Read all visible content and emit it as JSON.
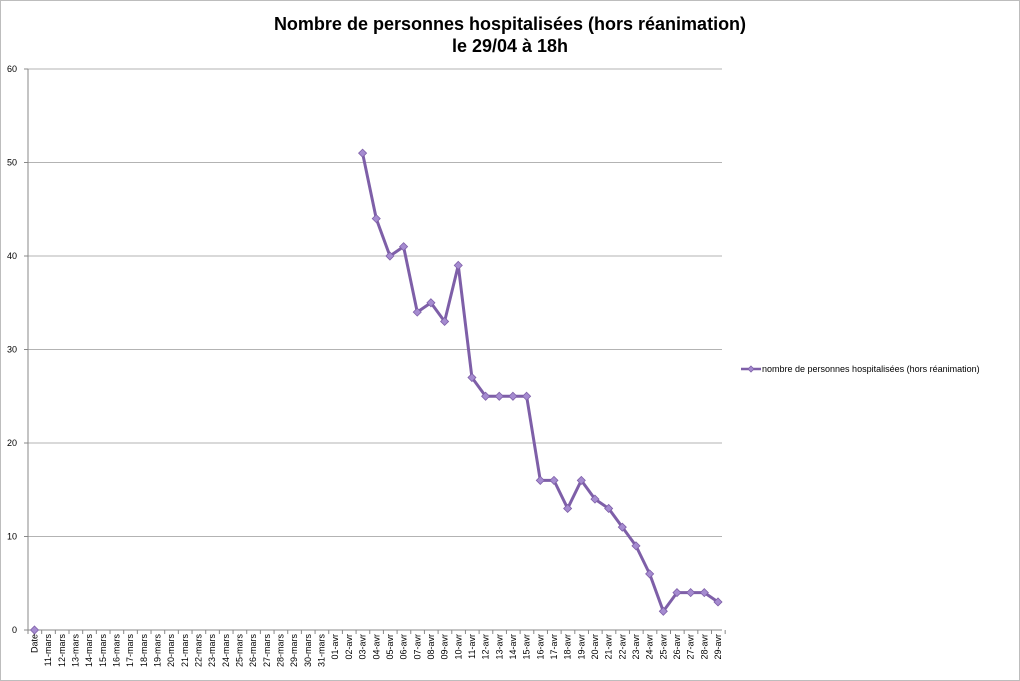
{
  "chart_data": {
    "type": "line",
    "title": "Nombre de personnes hospitalisées (hors réanimation)",
    "subtitle": "le 29/04 à 18h",
    "xlabel": "",
    "ylabel": "",
    "ylim": [
      0,
      60
    ],
    "yticks": [
      0,
      10,
      20,
      30,
      40,
      50,
      60
    ],
    "grid": true,
    "legend_position": "right",
    "line_color": "#7e5fa8",
    "marker_color": "#a58bd0",
    "categories": [
      "Date",
      "11-mars",
      "12-mars",
      "13-mars",
      "14-mars",
      "15-mars",
      "16-mars",
      "17-mars",
      "18-mars",
      "19-mars",
      "20-mars",
      "21-mars",
      "22-mars",
      "23-mars",
      "24-mars",
      "25-mars",
      "26-mars",
      "27-mars",
      "28-mars",
      "29-mars",
      "30-mars",
      "31-mars",
      "01-avr",
      "02-avr",
      "03-avr",
      "04-avr",
      "05-avr",
      "06-avr",
      "07-avr",
      "08-avr",
      "09-avr",
      "10-avr",
      "11-avr",
      "12-avr",
      "13-avr",
      "14-avr",
      "15-avr",
      "16-avr",
      "17-avr",
      "18-avr",
      "19-avr",
      "20-avr",
      "21-avr",
      "22-avr",
      "23-avr",
      "24-avr",
      "25-avr",
      "26-avr",
      "27-avr",
      "28-avr",
      "29-avr"
    ],
    "series": [
      {
        "name": "nombre de personnes hospitalisées (hors réanimation)",
        "values": [
          0,
          null,
          null,
          null,
          null,
          null,
          null,
          null,
          null,
          null,
          null,
          null,
          null,
          null,
          null,
          null,
          null,
          null,
          null,
          null,
          null,
          null,
          null,
          null,
          51,
          44,
          40,
          41,
          34,
          35,
          33,
          39,
          27,
          25,
          25,
          25,
          25,
          16,
          16,
          13,
          16,
          14,
          13,
          11,
          9,
          6,
          2,
          4,
          4,
          4,
          3
        ]
      }
    ]
  }
}
